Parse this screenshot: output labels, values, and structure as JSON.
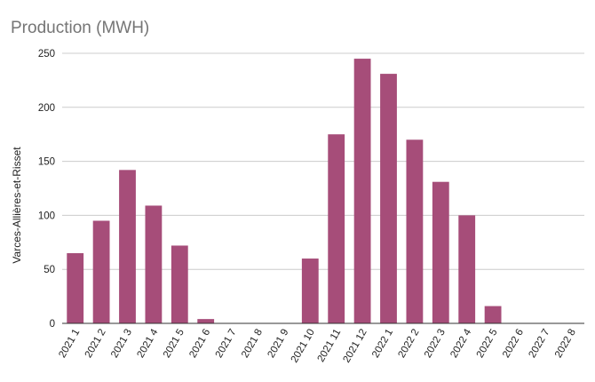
{
  "chart_data": {
    "type": "bar",
    "title": "Production (MWH)",
    "ylabel": "Varces-Allières-et-Risset",
    "xlabel": "",
    "categories": [
      "2021 1",
      "2021 2",
      "2021 3",
      "2021 4",
      "2021 5",
      "2021 6",
      "2021 7",
      "2021 8",
      "2021 9",
      "2021 10",
      "2021 11",
      "2021 12",
      "2022 1",
      "2022 2",
      "2022 3",
      "2022 4",
      "2022 5",
      "2022 6",
      "2022 7",
      "2022 8"
    ],
    "series": [
      {
        "values": [
          65,
          95,
          142,
          109,
          72,
          4,
          0,
          0,
          0,
          60,
          175,
          245,
          231,
          170,
          131,
          100,
          16,
          0,
          0,
          0
        ]
      }
    ],
    "ylim": [
      0,
      250
    ],
    "yticks": [
      0,
      50,
      100,
      150,
      200,
      250
    ],
    "grid": true,
    "legend": "none",
    "bar_color": "#a64d79"
  }
}
